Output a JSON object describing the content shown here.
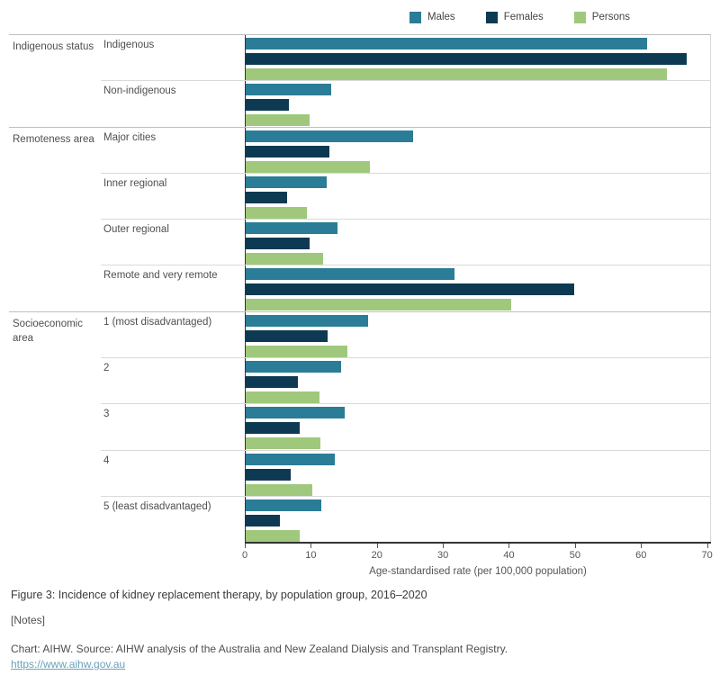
{
  "legend": [
    {
      "label": "Males",
      "color": "#2b7c96"
    },
    {
      "label": "Females",
      "color": "#0d3a52"
    },
    {
      "label": "Persons",
      "color": "#a0c87c"
    }
  ],
  "chart_data": {
    "type": "bar",
    "orientation": "horizontal",
    "series_names": [
      "Males",
      "Females",
      "Persons"
    ],
    "groups": [
      {
        "label": "Indigenous status",
        "rows": [
          {
            "label": "Indigenous",
            "values": [
              61,
              67,
              64
            ]
          },
          {
            "label": "Non-indigenous",
            "values": [
              13,
              6.5,
              9.7
            ]
          }
        ]
      },
      {
        "label": "Remoteness area",
        "rows": [
          {
            "label": "Major cities",
            "values": [
              25.4,
              12.7,
              18.9
            ]
          },
          {
            "label": "Inner regional",
            "values": [
              12.3,
              6.3,
              9.3
            ]
          },
          {
            "label": "Outer regional",
            "values": [
              13.9,
              9.7,
              11.8
            ]
          },
          {
            "label": "Remote and very remote",
            "values": [
              31.7,
              50,
              40.3
            ]
          }
        ]
      },
      {
        "label": "Socioeconomic area",
        "rows": [
          {
            "label": "1 (most disadvantaged)",
            "values": [
              18.6,
              12.5,
              15.4
            ]
          },
          {
            "label": "2",
            "values": [
              14.5,
              8,
              11.2
            ]
          },
          {
            "label": "3",
            "values": [
              15,
              8.2,
              11.4
            ]
          },
          {
            "label": "4",
            "values": [
              13.6,
              6.8,
              10.1
            ]
          },
          {
            "label": "5 (least disadvantaged)",
            "values": [
              11.5,
              5.2,
              8.2
            ]
          }
        ]
      }
    ],
    "xlabel": "Age-standardised rate (per 100,000 population)",
    "xlim": [
      0,
      70
    ],
    "x_display_max": 70.6,
    "ticks": [
      0,
      10,
      20,
      30,
      40,
      50,
      60,
      70
    ],
    "grid": "off",
    "legend_position": "top"
  },
  "footer": {
    "title": "Figure 3: Incidence of kidney replacement therapy, by population group, 2016–2020",
    "notes": "[Notes]",
    "source": "Chart: AIHW. Source: AIHW analysis of the Australia and New Zealand Dialysis and Transplant Registry.",
    "link": "https://www.aihw.gov.au"
  }
}
